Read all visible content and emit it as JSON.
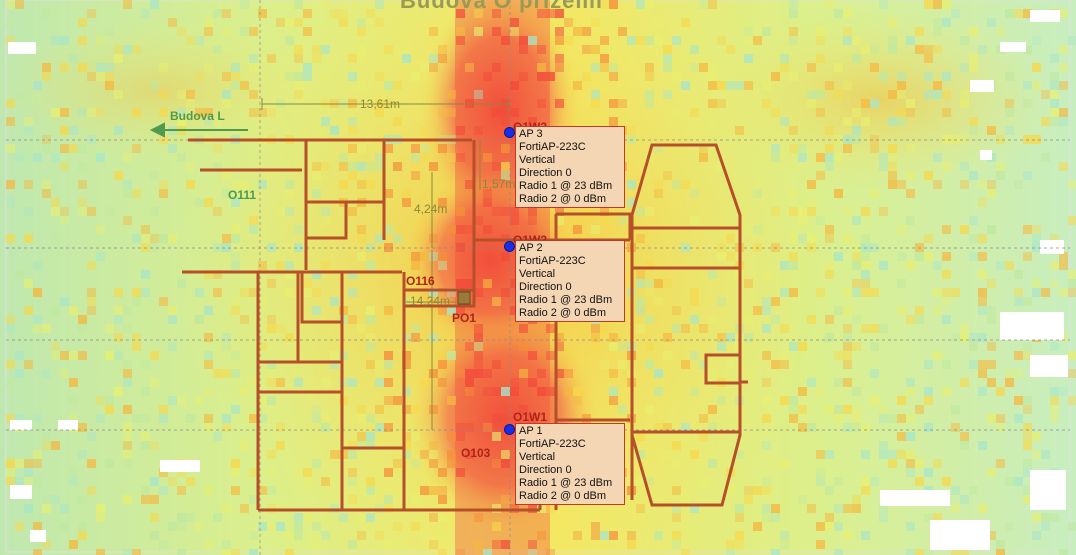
{
  "map": {
    "title": "Budova O přízemí",
    "building_label": "Budova L",
    "rooms": {
      "o111": "O111",
      "o116": "O116",
      "po1": "PO1",
      "o103": "O103",
      "o1w1": "O1W1",
      "o1w2": "O1W2",
      "o1w3": "O1W3"
    },
    "dimensions": {
      "d1": "13,61m",
      "d2": "4,24m",
      "d3": "1,57m",
      "d4": "14,24m"
    }
  },
  "access_points": [
    {
      "name": "AP 3",
      "model": "FortiAP-223C",
      "orientation": "Vertical",
      "direction": "Direction 0",
      "radio1": "Radio 1 @ 23 dBm",
      "radio2": "Radio 2 @ 0 dBm"
    },
    {
      "name": "AP 2",
      "model": "FortiAP-223C",
      "orientation": "Vertical",
      "direction": "Direction 0",
      "radio1": "Radio 1 @ 23 dBm",
      "radio2": "Radio 2 @ 0 dBm"
    },
    {
      "name": "AP 1",
      "model": "FortiAP-223C",
      "orientation": "Vertical",
      "direction": "Direction 0",
      "radio1": "Radio 1 @ 23 dBm",
      "radio2": "Radio 2 @ 0 dBm"
    }
  ],
  "colors": {
    "signal_strong": "#f24a3a",
    "signal_medium": "#f7d84a",
    "signal_weak": "#bfe8a0",
    "signal_faint": "#a8e6c8",
    "wall": "#b5502a",
    "ap_marker": "#1a2ee8",
    "ap_label_bg": "#f5d6b4"
  }
}
